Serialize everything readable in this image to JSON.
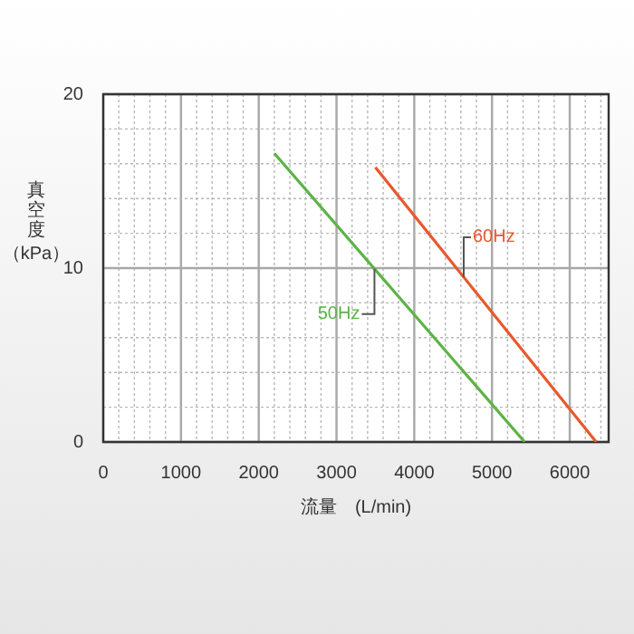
{
  "chart_data": {
    "type": "line",
    "xlabel": "流量　(L/min)",
    "ylabel": "真空度（kPa）",
    "xlim": [
      0,
      6500
    ],
    "ylim": [
      0,
      20
    ],
    "xticks": [
      0,
      {
        "value": 200,
        "label": null
      },
      {
        "value": 400,
        "label": null
      },
      {
        "value": 600,
        "label": null
      },
      {
        "value": 800,
        "label": null
      },
      1000,
      {
        "value": 1200,
        "label": null
      },
      {
        "value": 1400,
        "label": null
      },
      {
        "value": 1600,
        "label": null
      },
      {
        "value": 1800,
        "label": null
      },
      2000,
      {
        "value": 2200,
        "label": null
      },
      {
        "value": 2400,
        "label": null
      },
      {
        "value": 2600,
        "label": null
      },
      {
        "value": 2800,
        "label": null
      },
      3000,
      {
        "value": 3200,
        "label": null
      },
      {
        "value": 3400,
        "label": null
      },
      {
        "value": 3600,
        "label": null
      },
      {
        "value": 3800,
        "label": null
      },
      4000,
      {
        "value": 4200,
        "label": null
      },
      {
        "value": 4400,
        "label": null
      },
      {
        "value": 4600,
        "label": null
      },
      {
        "value": 4800,
        "label": null
      },
      5000,
      {
        "value": 5200,
        "label": null
      },
      {
        "value": 5400,
        "label": null
      },
      {
        "value": 5600,
        "label": null
      },
      {
        "value": 5800,
        "label": null
      },
      6000,
      {
        "value": 6200,
        "label": null
      },
      {
        "value": 6400,
        "label": null
      }
    ],
    "yticks": [
      0,
      {
        "value": 2,
        "label": null
      },
      {
        "value": 4,
        "label": null
      },
      {
        "value": 6,
        "label": null
      },
      {
        "value": 8,
        "label": null
      },
      10,
      {
        "value": 12,
        "label": null
      },
      {
        "value": 14,
        "label": null
      },
      {
        "value": 16,
        "label": null
      },
      {
        "value": 18,
        "label": null
      },
      20
    ],
    "grid": true,
    "marker": "none",
    "line_style": "solid",
    "legend": false,
    "series": [
      {
        "name": "50Hz",
        "color": "#5cb346",
        "x": [
          2200,
          5420
        ],
        "values": [
          16.6,
          0
        ]
      },
      {
        "name": "60Hz",
        "color": "#e8582c",
        "x": [
          3500,
          6340
        ],
        "values": [
          15.8,
          0
        ]
      }
    ]
  }
}
